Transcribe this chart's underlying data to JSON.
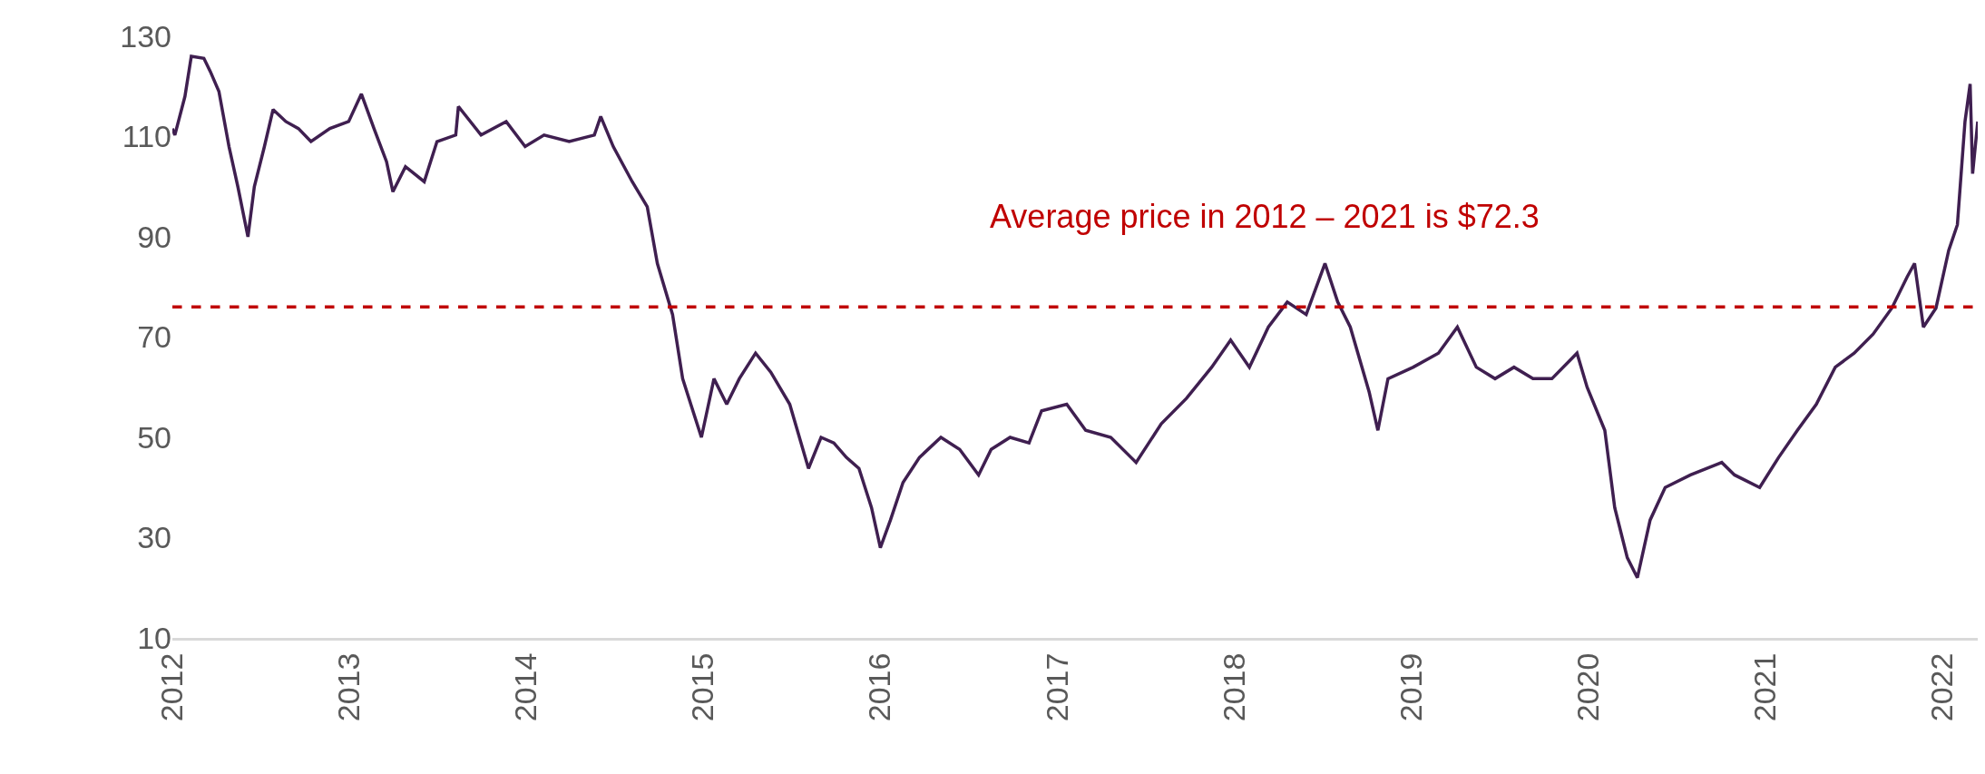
{
  "chart_data": {
    "type": "line",
    "x": [
      2012.0,
      2012.014,
      2012.071,
      2012.107,
      2012.178,
      2012.214,
      2012.263,
      2012.32,
      2012.37,
      2012.427,
      2012.463,
      2012.52,
      2012.569,
      2012.641,
      2012.712,
      2012.783,
      2012.89,
      2012.996,
      2013.068,
      2013.139,
      2013.21,
      2013.246,
      2013.317,
      2013.423,
      2013.495,
      2013.601,
      2013.616,
      2013.744,
      2013.886,
      2013.993,
      2014.1,
      2014.242,
      2014.384,
      2014.42,
      2014.491,
      2014.598,
      2014.683,
      2014.74,
      2014.826,
      2014.883,
      2014.989,
      2015.06,
      2015.132,
      2015.203,
      2015.295,
      2015.381,
      2015.488,
      2015.594,
      2015.665,
      2015.737,
      2015.808,
      2015.879,
      2015.95,
      2016.0,
      2016.057,
      2016.128,
      2016.221,
      2016.342,
      2016.448,
      2016.555,
      2016.626,
      2016.733,
      2016.84,
      2016.911,
      2017.053,
      2017.16,
      2017.302,
      2017.445,
      2017.587,
      2017.73,
      2017.872,
      2017.979,
      2018.085,
      2018.192,
      2018.299,
      2018.406,
      2018.512,
      2018.584,
      2018.655,
      2018.762,
      2018.811,
      2018.868,
      2019.011,
      2019.153,
      2019.26,
      2019.367,
      2019.473,
      2019.58,
      2019.687,
      2019.794,
      2019.936,
      2019.993,
      2020.093,
      2020.149,
      2020.22,
      2020.277,
      2020.349,
      2020.434,
      2020.577,
      2020.754,
      2020.826,
      2020.968,
      2021.075,
      2021.181,
      2021.288,
      2021.395,
      2021.502,
      2021.609,
      2021.715,
      2021.801,
      2021.843,
      2021.893,
      2021.964,
      2022.036,
      2022.085,
      2022.128,
      2022.157,
      2022.171,
      2022.2
    ],
    "series": [
      {
        "color": "#3f1f50",
        "values": [
          111.6,
          110.3,
          118,
          126,
          125.6,
          123,
          119,
          108,
          100,
          90,
          100,
          108,
          115.4,
          113,
          111.6,
          109,
          111.6,
          113,
          118.5,
          111.6,
          105,
          99,
          104,
          101,
          109,
          110.3,
          116,
          110.3,
          113,
          108,
          110.3,
          109,
          110.3,
          114,
          108,
          101,
          96,
          84.7,
          74.5,
          61.7,
          50,
          61.7,
          56.6,
          61.7,
          66.8,
          63,
          56.6,
          43.8,
          50,
          48.9,
          46,
          43.8,
          36,
          28,
          33.5,
          41,
          46,
          50,
          47.6,
          42.5,
          47.6,
          50,
          48.9,
          55.3,
          56.6,
          51.4,
          50,
          45,
          52.7,
          57.8,
          64,
          69.4,
          64,
          72,
          77,
          74.5,
          84.7,
          77,
          72,
          59,
          51.4,
          61.7,
          64,
          66.8,
          72,
          64,
          61.7,
          64,
          61.7,
          61.7,
          66.8,
          60,
          51.4,
          36,
          26,
          22,
          33.5,
          40,
          42.5,
          45,
          42.5,
          40,
          46,
          51.4,
          56.6,
          64,
          66.8,
          70.6,
          75.8,
          82,
          84.7,
          72,
          75.8,
          87.3,
          92.4,
          113,
          120.5,
          102.6,
          113
        ]
      }
    ],
    "xlim": [
      2012,
      2022.2
    ],
    "xticks": [
      2012,
      2013,
      2014,
      2015,
      2016,
      2017,
      2018,
      2019,
      2020,
      2021,
      2022
    ],
    "ylim": [
      10,
      130
    ],
    "yticks": [
      10,
      30,
      50,
      70,
      90,
      110,
      130
    ],
    "ref_lines": [
      {
        "axis": "y",
        "value": 76,
        "label": "Average price in 2012 – 2021 is $72.3",
        "color": "#c00000",
        "line_style": "dashed"
      }
    ],
    "marker": "none",
    "line_style": "solid"
  }
}
